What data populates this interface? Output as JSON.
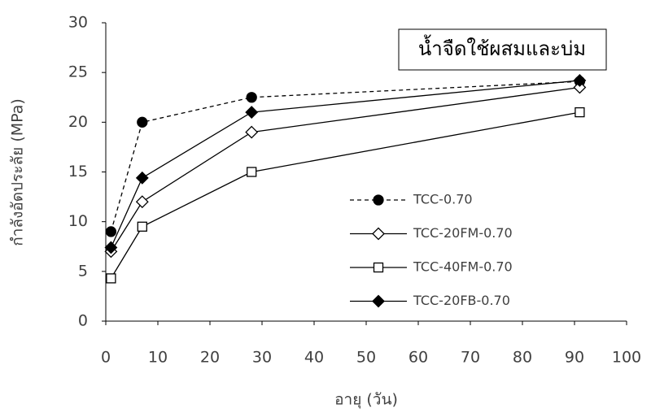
{
  "chart_data": {
    "type": "line",
    "annotation": "น้ำจืดใช้ผสมและบ่ม",
    "x_label": "อายุ (วัน)",
    "y_label": "กำลังอัดประลัย (MPa)",
    "xlim": [
      0,
      100
    ],
    "xticks": [
      0,
      10,
      20,
      30,
      40,
      50,
      60,
      70,
      80,
      90,
      100
    ],
    "ylim": [
      0,
      30
    ],
    "yticks": [
      0,
      5,
      10,
      15,
      20,
      25,
      30
    ],
    "grid": false,
    "legend": "right",
    "series": [
      {
        "name": "TCC-0.70",
        "color": "#000000",
        "dashed": true,
        "marker": "circle",
        "filled": true,
        "x": [
          1,
          7,
          28,
          91
        ],
        "values": [
          9,
          20,
          22.5,
          24.1
        ]
      },
      {
        "name": "TCC-20FM-0.70",
        "color": "#000000",
        "dashed": false,
        "marker": "diamond",
        "filled": false,
        "x": [
          1,
          7,
          28,
          91
        ],
        "values": [
          7,
          12,
          19,
          23.5
        ]
      },
      {
        "name": "TCC-40FM-0.70",
        "color": "#000000",
        "dashed": false,
        "marker": "square",
        "filled": false,
        "x": [
          1,
          7,
          28,
          91
        ],
        "values": [
          4.3,
          9.5,
          15,
          21
        ]
      },
      {
        "name": "TCC-20FB-0.70",
        "color": "#000000",
        "dashed": false,
        "marker": "diamond",
        "filled": true,
        "x": [
          1,
          7,
          28,
          91
        ],
        "values": [
          7.4,
          14.4,
          21,
          24.2
        ]
      }
    ]
  }
}
